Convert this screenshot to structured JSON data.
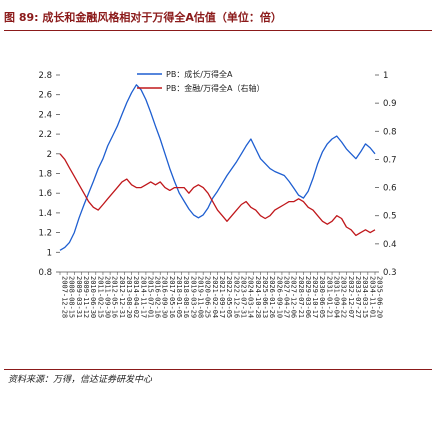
{
  "title": "图 89: 成长和金融风格相对于万得全A估值（单位：倍）",
  "source": "资料来源：万得，信达证券研发中心",
  "chart_data": {
    "type": "line",
    "left_axis": {
      "min": 0.8,
      "max": 2.8,
      "ticks": [
        "0.8",
        "1",
        "1.2",
        "1.4",
        "1.6",
        "1.8",
        "2",
        "2.2",
        "2.4",
        "2.6",
        "2.8"
      ]
    },
    "right_axis": {
      "min": 0.3,
      "max": 1.0,
      "ticks": [
        "0.3",
        "0.4",
        "0.5",
        "0.6",
        "0.7",
        "0.8",
        "0.9",
        "1"
      ]
    },
    "x_ticks": [
      "2007-12-28",
      "2008-08-15",
      "2009-03-31",
      "2009-11-12",
      "2010-06-30",
      "2011-02-15",
      "2011-09-30",
      "2012-05-16",
      "2012-12-31",
      "2013-08-20",
      "2014-04-02",
      "2014-11-17",
      "2015-07-01",
      "2016-02-16",
      "2016-09-30",
      "2017-05-16",
      "2018-01-05",
      "2018-08-16",
      "2019-03-29",
      "2019-11-08",
      "2020-06-25",
      "2021-02-04",
      "2021-09-17",
      "2022-05-05",
      "2022-12-16",
      "2023-07-31",
      "2024-03-14",
      "2024-10-28",
      "2025-06-13",
      "2026-01-26",
      "2026-09-10",
      "2027-04-27",
      "2027-12-06",
      "2028-07-21",
      "2029-03-06",
      "2029-10-17",
      "2030-06-05",
      "2031-01-21",
      "2031-09-04",
      "2032-04-22",
      "2032-12-07",
      "2033-07-27",
      "2034-03-15",
      "2034-11-01",
      "2035-06-20"
    ],
    "legend": {
      "series1": "PB：成长/万得全A",
      "series2": "PB：金融/万得全A（右轴）"
    },
    "series": [
      {
        "name": "PB：成长/万得全A",
        "axis": "left",
        "color": "#1f5fd1",
        "values": [
          1.02,
          1.05,
          1.1,
          1.2,
          1.35,
          1.48,
          1.6,
          1.72,
          1.85,
          1.95,
          2.08,
          2.18,
          2.28,
          2.4,
          2.52,
          2.62,
          2.7,
          2.65,
          2.55,
          2.42,
          2.28,
          2.15,
          2.0,
          1.85,
          1.72,
          1.6,
          1.52,
          1.44,
          1.38,
          1.35,
          1.38,
          1.45,
          1.55,
          1.62,
          1.7,
          1.78,
          1.85,
          1.92,
          2.0,
          2.08,
          2.15,
          2.05,
          1.95,
          1.9,
          1.85,
          1.82,
          1.8,
          1.78,
          1.72,
          1.65,
          1.58,
          1.55,
          1.62,
          1.75,
          1.9,
          2.02,
          2.1,
          2.15,
          2.18,
          2.12,
          2.05,
          2.0,
          1.95,
          2.02,
          2.1,
          2.06,
          2.0
        ]
      },
      {
        "name": "PB：金融/万得全A（右轴）",
        "axis": "right",
        "color": "#c0181c",
        "values": [
          0.72,
          0.7,
          0.67,
          0.64,
          0.61,
          0.58,
          0.55,
          0.53,
          0.52,
          0.54,
          0.56,
          0.58,
          0.6,
          0.62,
          0.63,
          0.61,
          0.6,
          0.6,
          0.61,
          0.62,
          0.61,
          0.62,
          0.6,
          0.59,
          0.6,
          0.6,
          0.6,
          0.58,
          0.6,
          0.61,
          0.6,
          0.58,
          0.55,
          0.52,
          0.5,
          0.48,
          0.5,
          0.52,
          0.54,
          0.55,
          0.53,
          0.52,
          0.5,
          0.49,
          0.5,
          0.52,
          0.53,
          0.54,
          0.55,
          0.55,
          0.56,
          0.55,
          0.53,
          0.52,
          0.5,
          0.48,
          0.47,
          0.48,
          0.5,
          0.49,
          0.46,
          0.45,
          0.43,
          0.44,
          0.45,
          0.44,
          0.45
        ]
      }
    ]
  }
}
